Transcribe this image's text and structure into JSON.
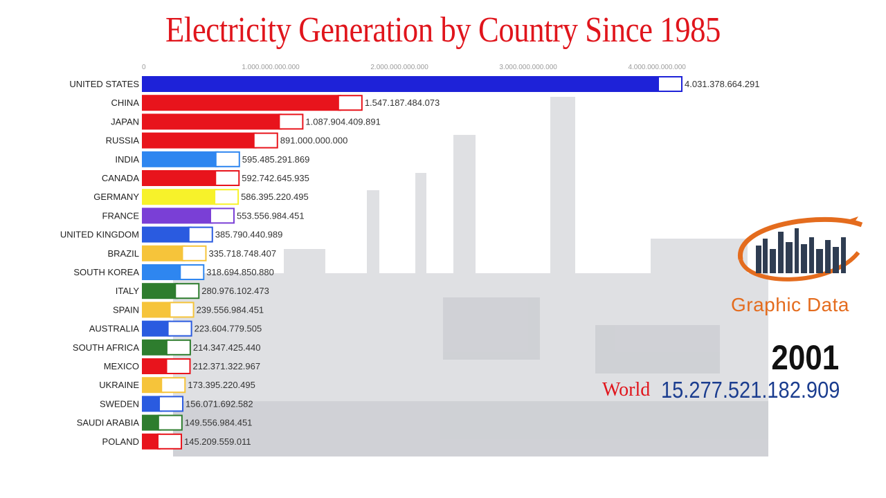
{
  "header": {
    "title": "Electricity Generation by Country Since 1985"
  },
  "overlay": {
    "brand": "Graphic Data",
    "year": "2001",
    "world_label": "World",
    "world_value": "15.277.521.182.909"
  },
  "chart_data": {
    "type": "bar",
    "orientation": "horizontal",
    "title": "Electricity Generation by Country Since 1985",
    "xlabel": "",
    "ylabel": "",
    "xlim": [
      0,
      4000000000000
    ],
    "xticks": [
      0,
      1000000000000,
      2000000000000,
      3000000000000,
      4000000000000
    ],
    "xtick_labels": [
      "0",
      "1.000.000.000.000",
      "2.000.000.000.000",
      "3.000.000.000.000",
      "4.000.000.000.000"
    ],
    "grid": false,
    "categories": [
      "UNITED STATES",
      "CHINA",
      "JAPAN",
      "RUSSIA",
      "INDIA",
      "CANADA",
      "GERMANY",
      "FRANCE",
      "UNITED KINGDOM",
      "BRAZIL",
      "SOUTH KOREA",
      "ITALY",
      "SPAIN",
      "AUSTRALIA",
      "SOUTH AFRICA",
      "MEXICO",
      "UKRAINE",
      "SWEDEN",
      "SAUDI ARABIA",
      "POLAND"
    ],
    "values": [
      4031378664291,
      1547187484073,
      1087904409891,
      891000000000,
      595485291869,
      592742645935,
      586395220495,
      553556984451,
      385790440989,
      335718748407,
      318694850880,
      280976102473,
      239556984451,
      223604779505,
      214347425440,
      212371322967,
      173395220495,
      156071692582,
      149556984451,
      145209559011
    ],
    "value_labels": [
      "4.031.378.664.291",
      "1.547.187.484.073",
      "1.087.904.409.891",
      "891.000.000.000",
      "595.485.291.869",
      "592.742.645.935",
      "586.395.220.495",
      "553.556.984.451",
      "385.790.440.989",
      "335.718.748.407",
      "318.694.850.880",
      "280.976.102.473",
      "239.556.984.451",
      "223.604.779.505",
      "214.347.425.440",
      "212.371.322.967",
      "173.395.220.495",
      "156.071.692.582",
      "149.556.984.451",
      "145.209.559.011"
    ],
    "colors": [
      "#1e22d8",
      "#e8141c",
      "#e8141c",
      "#e8141c",
      "#2e86f0",
      "#e8141c",
      "#f7f22a",
      "#7a3fd6",
      "#2a5be0",
      "#f6c43a",
      "#2e86f0",
      "#2e7d2e",
      "#f6c43a",
      "#2a5be0",
      "#2e7d2e",
      "#e8141c",
      "#f6c43a",
      "#2a5be0",
      "#2e7d2e",
      "#e8141c"
    ],
    "flag_icons": [
      "flag-usa-icon",
      "flag-china-icon",
      "flag-japan-icon",
      "flag-russia-icon",
      "flag-india-icon",
      "flag-canada-icon",
      "flag-germany-icon",
      "flag-france-icon",
      "flag-uk-icon",
      "flag-brazil-icon",
      "flag-south-korea-icon",
      "flag-italy-icon",
      "flag-spain-icon",
      "flag-australia-icon",
      "flag-south-africa-icon",
      "flag-mexico-icon",
      "flag-ukraine-icon",
      "flag-sweden-icon",
      "flag-saudi-arabia-icon",
      "flag-poland-icon"
    ]
  }
}
